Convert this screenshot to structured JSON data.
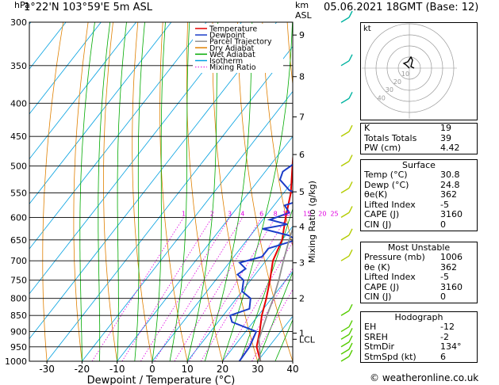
{
  "header": {
    "location": "1°22'N 103°59'E 5m ASL",
    "datetime": "05.06.2021 18GMT (Base: 12)",
    "hpa_label": "hPa",
    "km_label": "km",
    "asl_label": "ASL"
  },
  "legend": [
    {
      "label": "Temperature",
      "color": "#e60000"
    },
    {
      "label": "Dewpoint",
      "color": "#1a3cc8"
    },
    {
      "label": "Parcel Trajectory",
      "color": "#909090"
    },
    {
      "label": "Dry Adiabat",
      "color": "#e08000"
    },
    {
      "label": "Wet Adiabat",
      "color": "#00aa00"
    },
    {
      "label": "Isotherm",
      "color": "#00a0e0"
    },
    {
      "label": "Mixing Ratio",
      "color": "#e000e0"
    }
  ],
  "chart_data": {
    "type": "line",
    "title": "",
    "xlabel": "Dewpoint / Temperature (°C)",
    "ylabel": "hPa",
    "y2label": "Mixing Ratio (g/kg)",
    "xlim": [
      -35,
      40
    ],
    "ylim": [
      1000,
      300
    ],
    "y_scale": "log",
    "x_ticks": [
      -30,
      -20,
      -10,
      0,
      10,
      20,
      30,
      40
    ],
    "pressure_levels": [
      300,
      350,
      400,
      450,
      500,
      550,
      600,
      650,
      700,
      750,
      800,
      850,
      900,
      950,
      1000
    ],
    "km_ticks": [
      {
        "label": "9",
        "p": 314
      },
      {
        "label": "8",
        "p": 364
      },
      {
        "label": "7",
        "p": 420
      },
      {
        "label": "6",
        "p": 480
      },
      {
        "label": "5",
        "p": 548
      },
      {
        "label": "4",
        "p": 620
      },
      {
        "label": "3",
        "p": 705
      },
      {
        "label": "2",
        "p": 800
      },
      {
        "label": "1",
        "p": 905
      },
      {
        "label": "LCL",
        "p": 925
      }
    ],
    "mixing_ratio_labels": [
      "1",
      "2",
      "3",
      "4",
      "6",
      "8",
      "10",
      "15",
      "20",
      "25"
    ],
    "series": [
      {
        "name": "Temperature",
        "color": "#e60000",
        "points": [
          [
            1000,
            30.8
          ],
          [
            950,
            26.5
          ],
          [
            900,
            24
          ],
          [
            850,
            21
          ],
          [
            800,
            18.5
          ],
          [
            750,
            15.5
          ],
          [
            700,
            12
          ],
          [
            650,
            10
          ],
          [
            600,
            6
          ],
          [
            550,
            2
          ],
          [
            500,
            -3.5
          ],
          [
            450,
            -9.5
          ],
          [
            400,
            -15
          ],
          [
            370,
            -18.5
          ],
          [
            350,
            -21.5
          ],
          [
            320,
            -26.5
          ],
          [
            300,
            -31
          ]
        ]
      },
      {
        "name": "Dewpoint",
        "color": "#1a3cc8",
        "points": [
          [
            1000,
            24.8
          ],
          [
            950,
            24.5
          ],
          [
            900,
            23
          ],
          [
            870,
            14
          ],
          [
            850,
            12
          ],
          [
            830,
            16
          ],
          [
            800,
            14
          ],
          [
            780,
            10
          ],
          [
            750,
            8
          ],
          [
            735,
            5
          ],
          [
            720,
            6
          ],
          [
            705,
            3
          ],
          [
            690,
            8
          ],
          [
            670,
            8
          ],
          [
            650,
            14
          ],
          [
            640,
            11
          ],
          [
            625,
            2
          ],
          [
            615,
            8
          ],
          [
            605,
            2
          ],
          [
            590,
            6
          ],
          [
            575,
            3
          ],
          [
            560,
            8
          ],
          [
            545,
            1
          ],
          [
            525,
            -4
          ],
          [
            510,
            -5
          ],
          [
            490,
            -3
          ],
          [
            470,
            -4
          ],
          [
            450,
            -5
          ],
          [
            430,
            -3
          ],
          [
            420,
            -6
          ],
          [
            400,
            -3
          ],
          [
            380,
            -5
          ],
          [
            370,
            -8
          ],
          [
            368,
            -20
          ],
          [
            350,
            -20
          ],
          [
            320,
            -16
          ],
          [
            300,
            -13
          ]
        ]
      },
      {
        "name": "Parcel Trajectory",
        "color": "#909090",
        "points": [
          [
            1000,
            30.8
          ],
          [
            925,
            25.5
          ],
          [
            850,
            22.5
          ],
          [
            800,
            20.5
          ],
          [
            750,
            18
          ],
          [
            700,
            15
          ],
          [
            650,
            12
          ],
          [
            600,
            9
          ],
          [
            550,
            5
          ],
          [
            500,
            0.5
          ],
          [
            450,
            -4.5
          ],
          [
            400,
            -10.5
          ],
          [
            350,
            -17.5
          ],
          [
            300,
            -26
          ]
        ]
      }
    ]
  },
  "hodograph": {
    "unit_label": "kt",
    "ring_labels": [
      "10",
      "20",
      "30",
      "40"
    ]
  },
  "indices": [
    {
      "label": "K",
      "value": "19"
    },
    {
      "label": "Totals Totals",
      "value": "39"
    },
    {
      "label": "PW (cm)",
      "value": "4.42"
    }
  ],
  "surface": {
    "title": "Surface",
    "rows": [
      {
        "label": "Temp (°C)",
        "value": "30.8"
      },
      {
        "label": "Dewp (°C)",
        "value": "24.8"
      },
      {
        "label": "θe(K)",
        "value": "362"
      },
      {
        "label": "Lifted Index",
        "value": "-5"
      },
      {
        "label": "CAPE (J)",
        "value": "3160"
      },
      {
        "label": "CIN (J)",
        "value": "0"
      }
    ]
  },
  "most_unstable": {
    "title": "Most Unstable",
    "rows": [
      {
        "label": "Pressure (mb)",
        "value": "1006"
      },
      {
        "label": "θe (K)",
        "value": "362"
      },
      {
        "label": "Lifted Index",
        "value": "-5"
      },
      {
        "label": "CAPE (J)",
        "value": "3160"
      },
      {
        "label": "CIN (J)",
        "value": "0"
      }
    ]
  },
  "hodograph_table": {
    "title": "Hodograph",
    "rows": [
      {
        "label": "EH",
        "value": "-12"
      },
      {
        "label": "SREH",
        "value": "-2"
      },
      {
        "label": "StmDir",
        "value": "134°"
      },
      {
        "label": "StmSpd (kt)",
        "value": "6"
      }
    ]
  },
  "footer": "© weatheronline.co.uk"
}
